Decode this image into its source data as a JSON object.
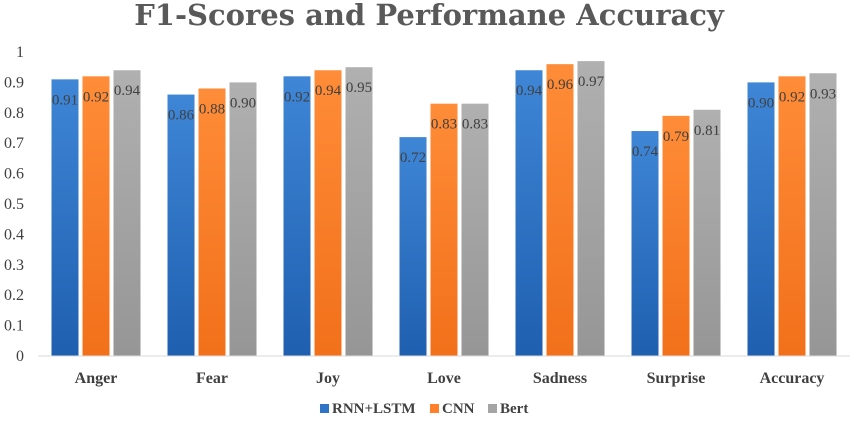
{
  "chart_data": {
    "type": "bar",
    "title": "F1-Scores and Performane Accuracy",
    "xlabel": "",
    "ylabel": "",
    "categories": [
      "Anger",
      "Fear",
      "Joy",
      "Love",
      "Sadness",
      "Surprise",
      "Accuracy"
    ],
    "series": [
      {
        "name": "RNN+LSTM",
        "color": "#2e75c8",
        "values": [
          0.91,
          0.86,
          0.92,
          0.72,
          0.94,
          0.74,
          0.9
        ],
        "labels": [
          "0.91",
          "0.86",
          "0.92",
          "0.72",
          "0.94",
          "0.74",
          "0.90"
        ]
      },
      {
        "name": "CNN",
        "color": "#ff7f2a",
        "values": [
          0.92,
          0.88,
          0.94,
          0.83,
          0.96,
          0.79,
          0.92
        ],
        "labels": [
          "0.92",
          "0.88",
          "0.94",
          "0.83",
          "0.96",
          "0.79",
          "0.92"
        ]
      },
      {
        "name": "Bert",
        "color": "#a5a5a5",
        "values": [
          0.94,
          0.9,
          0.95,
          0.83,
          0.97,
          0.81,
          0.93
        ],
        "labels": [
          "0.94",
          "0.90",
          "0.95",
          "0.83",
          "0.97",
          "0.81",
          "0.93"
        ]
      }
    ],
    "ylim": [
      0,
      1
    ],
    "yticks": [
      "0",
      "0.1",
      "0.2",
      "0.3",
      "0.4",
      "0.5",
      "0.6",
      "0.7",
      "0.8",
      "0.9",
      "1"
    ],
    "grid": false,
    "legend_position": "bottom"
  }
}
